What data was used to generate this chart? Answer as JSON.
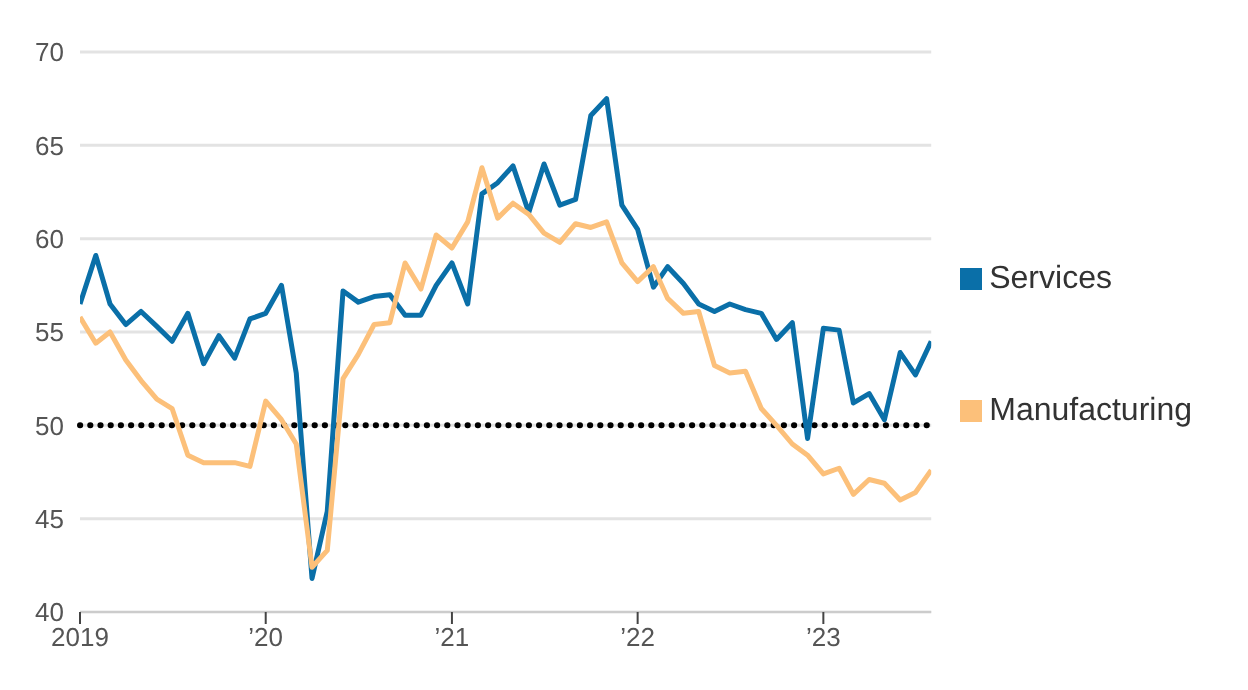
{
  "chart_data": {
    "type": "line",
    "x": [
      "2019-01",
      "2019-02",
      "2019-03",
      "2019-04",
      "2019-05",
      "2019-06",
      "2019-07",
      "2019-08",
      "2019-09",
      "2019-10",
      "2019-11",
      "2019-12",
      "2020-01",
      "2020-02",
      "2020-03",
      "2020-04",
      "2020-05",
      "2020-06",
      "2020-07",
      "2020-08",
      "2020-09",
      "2020-10",
      "2020-11",
      "2020-12",
      "2021-01",
      "2021-02",
      "2021-03",
      "2021-04",
      "2021-05",
      "2021-06",
      "2021-07",
      "2021-08",
      "2021-09",
      "2021-10",
      "2021-11",
      "2021-12",
      "2022-01",
      "2022-02",
      "2022-03",
      "2022-04",
      "2022-05",
      "2022-06",
      "2022-07",
      "2022-08",
      "2022-09",
      "2022-10",
      "2022-11",
      "2022-12",
      "2023-01",
      "2023-02",
      "2023-03",
      "2023-04",
      "2023-05",
      "2023-06",
      "2023-07",
      "2023-08"
    ],
    "series": [
      {
        "name": "Services",
        "color": "#0a6fa8",
        "values": [
          56.5,
          59.1,
          56.5,
          55.4,
          56.1,
          55.3,
          54.5,
          56.0,
          53.3,
          54.8,
          53.6,
          55.7,
          56.0,
          57.5,
          52.8,
          41.8,
          45.4,
          57.2,
          56.6,
          56.9,
          57.0,
          55.9,
          55.9,
          57.5,
          58.7,
          56.5,
          62.4,
          63.0,
          63.9,
          61.4,
          64.0,
          61.8,
          62.1,
          66.6,
          67.5,
          61.8,
          60.5,
          57.4,
          58.5,
          57.6,
          56.5,
          56.1,
          56.5,
          56.2,
          56.0,
          54.6,
          55.5,
          49.3,
          55.2,
          55.1,
          51.2,
          51.7,
          50.3,
          53.9,
          52.7,
          54.5
        ]
      },
      {
        "name": "Manufacturing",
        "color": "#fcc07a",
        "values": [
          55.8,
          54.4,
          55.0,
          53.5,
          52.4,
          51.4,
          50.9,
          48.4,
          48.0,
          48.0,
          48.0,
          47.8,
          51.3,
          50.3,
          49.0,
          42.4,
          43.3,
          52.5,
          53.8,
          55.4,
          55.5,
          58.7,
          57.3,
          60.2,
          59.5,
          60.9,
          63.8,
          61.1,
          61.9,
          61.3,
          60.3,
          59.8,
          60.8,
          60.6,
          60.9,
          58.7,
          57.7,
          58.5,
          56.8,
          56.0,
          56.1,
          53.2,
          52.8,
          52.9,
          50.9,
          50.0,
          49.0,
          48.4,
          47.4,
          47.7,
          46.3,
          47.1,
          46.9,
          46.0,
          46.4,
          47.6
        ]
      }
    ],
    "xlim": [
      "2019-01",
      "2023-08"
    ],
    "xticks": [
      {
        "value": "2019-01",
        "label": "2019"
      },
      {
        "value": "2020-01",
        "label": "’20"
      },
      {
        "value": "2021-01",
        "label": "’21"
      },
      {
        "value": "2022-01",
        "label": "’22"
      },
      {
        "value": "2023-01",
        "label": "’23"
      }
    ],
    "ylim": [
      40,
      70
    ],
    "yticks": [
      40,
      45,
      50,
      55,
      60,
      65,
      70
    ],
    "ref_lines": [
      {
        "axis": "y",
        "value": 50,
        "color": "#000000",
        "line_style": "dotted"
      }
    ],
    "grid": "y",
    "legend": "right",
    "marker": "none",
    "line_style": "solid"
  }
}
